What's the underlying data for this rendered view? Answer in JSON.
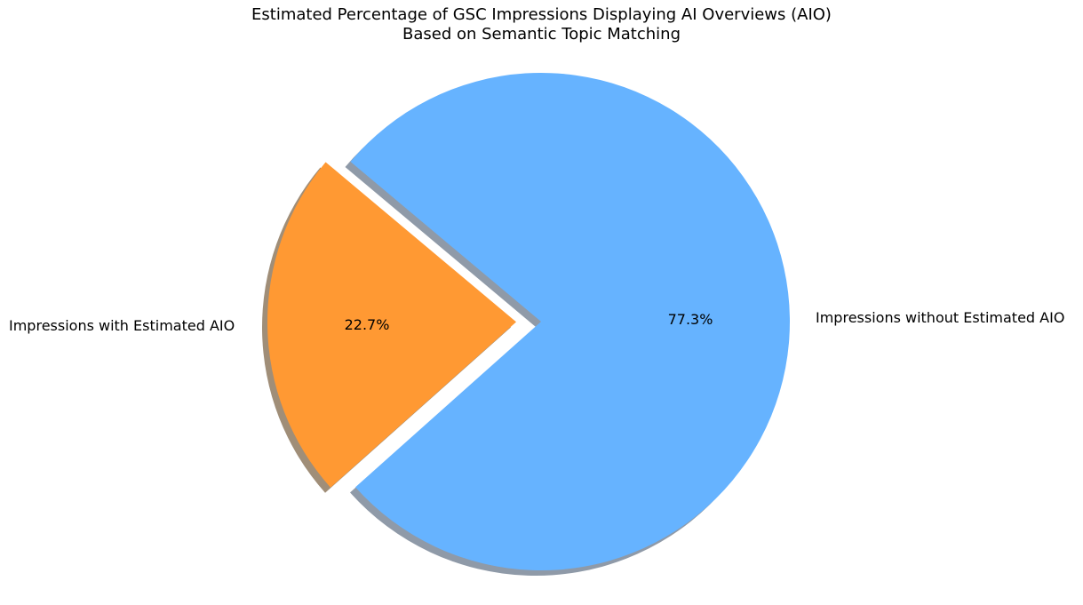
{
  "chart_data": {
    "type": "pie",
    "title": "Estimated Percentage of GSC Impressions Displaying AI Overviews (AIO)\nBased on Semantic Topic Matching",
    "title_lines": [
      "Estimated Percentage of GSC Impressions Displaying AI Overviews (AIO)",
      "Based on Semantic Topic Matching"
    ],
    "categories": [
      "Impressions with Estimated AIO",
      "Impressions without Estimated AIO"
    ],
    "values": [
      22.7,
      77.3
    ],
    "value_labels": [
      "22.7%",
      "77.3%"
    ],
    "colors": [
      "#ff9933",
      "#66b3ff"
    ],
    "explode": [
      0.1,
      0
    ],
    "shadow": true,
    "start_angle": 140,
    "legend": null
  },
  "labels": {
    "with_aio": "Impressions with Estimated AIO",
    "without_aio": "Impressions without Estimated AIO",
    "with_pct": "22.7%",
    "without_pct": "77.3%"
  }
}
